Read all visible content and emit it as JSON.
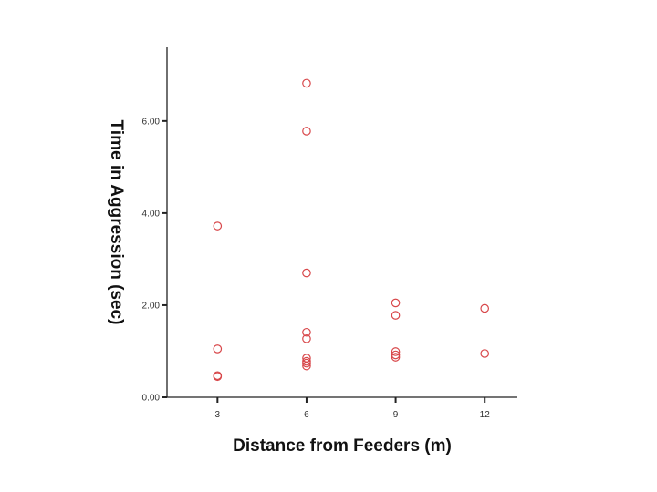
{
  "chart_data": {
    "type": "scatter",
    "title": "",
    "xlabel": "Distance from Feeders (m)",
    "ylabel": "Time in Aggression (sec)",
    "xlim": [
      1.3,
      13.1
    ],
    "ylim": [
      0,
      7.6
    ],
    "xticks": [
      3,
      6,
      9,
      12
    ],
    "xtick_labels": [
      "3",
      "6",
      "9",
      "12"
    ],
    "yticks": [
      0,
      2,
      4,
      6
    ],
    "ytick_labels": [
      "0.00",
      "2.00",
      "4.00",
      "6.00"
    ],
    "grid": false,
    "legend": "none",
    "marker": "open-circle",
    "marker_color": "#d8474a",
    "series": [
      {
        "x": [
          3,
          3,
          3,
          3,
          6,
          6,
          6,
          6,
          6,
          6,
          6,
          6,
          6,
          9,
          9,
          9,
          9,
          9,
          12,
          12
        ],
        "y": [
          3.72,
          1.05,
          0.47,
          0.45,
          6.82,
          5.78,
          2.7,
          1.41,
          1.27,
          0.85,
          0.78,
          0.74,
          0.68,
          2.05,
          1.78,
          0.99,
          0.92,
          0.87,
          1.93,
          0.95
        ]
      }
    ]
  }
}
